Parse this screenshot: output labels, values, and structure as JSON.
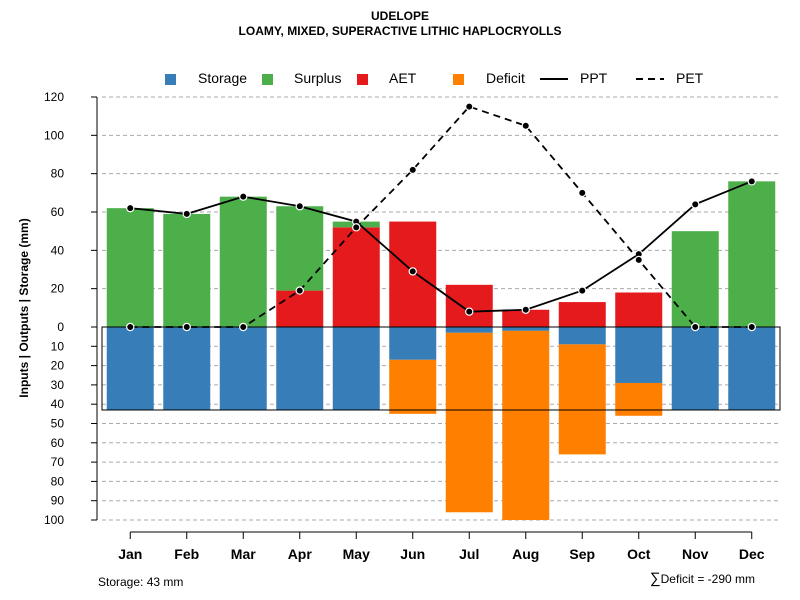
{
  "title": "UDELOPE",
  "subtitle": "LOAMY, MIXED, SUPERACTIVE LITHIC HAPLOCRYOLLS",
  "legend": [
    {
      "label": "Storage",
      "kind": "swatch",
      "color": "#377EB8"
    },
    {
      "label": "Surplus",
      "kind": "swatch",
      "color": "#4DAF4A"
    },
    {
      "label": "AET",
      "kind": "swatch",
      "color": "#E41A1C"
    },
    {
      "label": "Deficit",
      "kind": "swatch",
      "color": "#FF7F00"
    },
    {
      "label": "PPT",
      "kind": "solid-line",
      "color": "#000000"
    },
    {
      "label": "PET",
      "kind": "dashed-line",
      "color": "#000000"
    }
  ],
  "footer": {
    "storage": "Storage: 43 mm",
    "sigma": "∑",
    "deficit": "Deficit = -290 mm"
  },
  "chart_data": {
    "type": "bar",
    "title": "UDELOPE",
    "subtitle": "LOAMY, MIXED, SUPERACTIVE LITHIC HAPLOCRYOLLS",
    "xlabel": "",
    "ylabel": "Inputs | Outputs | Storage    (mm)",
    "categories": [
      "Jan",
      "Feb",
      "Mar",
      "Apr",
      "May",
      "Jun",
      "Jul",
      "Aug",
      "Sep",
      "Oct",
      "Nov",
      "Dec"
    ],
    "ylim_upper": [
      0,
      120
    ],
    "ylim_lower": [
      0,
      100
    ],
    "yticks_upper": [
      0,
      20,
      40,
      60,
      80,
      100,
      120
    ],
    "yticks_lower": [
      10,
      20,
      30,
      40,
      50,
      60,
      70,
      80,
      90,
      100
    ],
    "storage_capacity": 43,
    "upper_series": [
      {
        "name": "AET",
        "color": "#E41A1C",
        "values": [
          0,
          0,
          0,
          19,
          52,
          55,
          22,
          9,
          13,
          18,
          0,
          0
        ]
      },
      {
        "name": "Surplus",
        "color": "#4DAF4A",
        "values": [
          62,
          59,
          68,
          44,
          3,
          0,
          0,
          0,
          0,
          0,
          50,
          76
        ]
      }
    ],
    "lower_series": [
      {
        "name": "Storage",
        "color": "#377EB8",
        "values": [
          43,
          43,
          43,
          43,
          43,
          17,
          3,
          2,
          9,
          29,
          43,
          43
        ]
      },
      {
        "name": "Deficit",
        "color": "#FF7F00",
        "values": [
          0,
          0,
          0,
          0,
          0,
          28,
          93,
          98,
          57,
          17,
          0,
          0
        ]
      }
    ],
    "lines": [
      {
        "name": "PPT",
        "style": "solid",
        "values": [
          62,
          59,
          68,
          63,
          55,
          29,
          8,
          9,
          19,
          38,
          64,
          76
        ]
      },
      {
        "name": "PET",
        "style": "dashed",
        "values": [
          0,
          0,
          0,
          19,
          52,
          82,
          115,
          105,
          70,
          35,
          0,
          0
        ]
      }
    ],
    "grid": true,
    "legend_position": "top"
  }
}
